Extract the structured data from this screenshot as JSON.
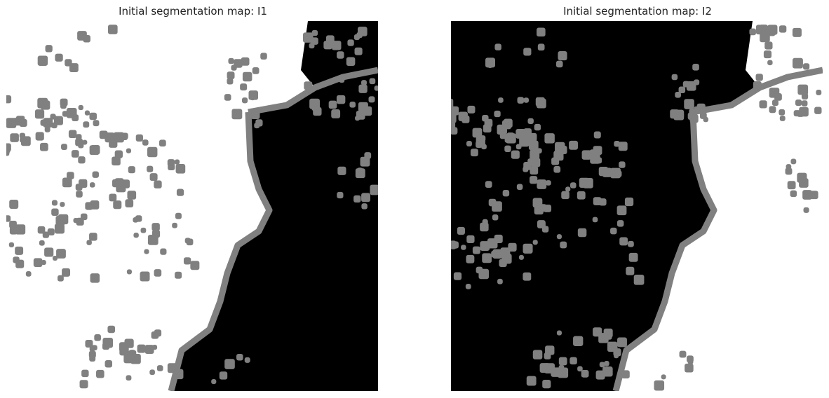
{
  "panels": [
    {
      "title": "Initial segmentation map: I1",
      "foreground": "#ffffff",
      "background": "#000000",
      "boundary": "#808080"
    },
    {
      "title": "Initial segmentation map: I2",
      "foreground": "#000000",
      "background": "#ffffff",
      "boundary": "#808080"
    }
  ],
  "colors": {
    "gray": "#808080",
    "black": "#000000",
    "white": "#ffffff"
  }
}
